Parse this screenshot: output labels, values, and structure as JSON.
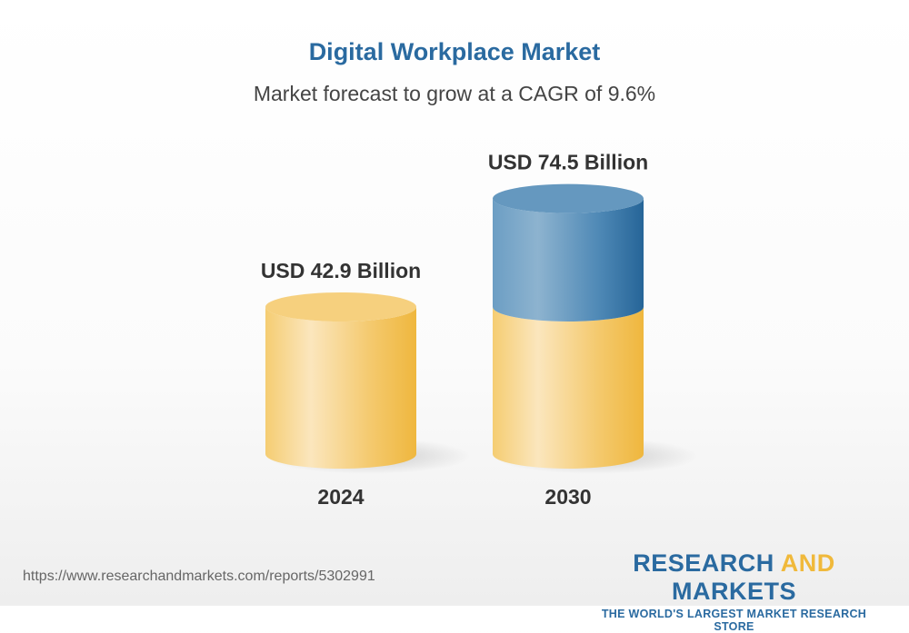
{
  "chart_data": {
    "type": "bar",
    "title": "Digital Workplace Market",
    "subtitle": "Market forecast to grow at a CAGR of 9.6%",
    "categories": [
      "2024",
      "2030"
    ],
    "values": [
      42.9,
      74.5
    ],
    "data_labels": [
      "USD 42.9 Billion",
      "USD 74.5 Billion"
    ],
    "style": "3d-cylinder",
    "colors": {
      "base": "#f2bc45",
      "growth": "#2a6aa0"
    }
  },
  "footer": {
    "url": "https://www.researchandmarkets.com/reports/5302991",
    "logo_part1": "RESEARCH ",
    "logo_part2": "AND",
    "logo_part3": " MARKETS",
    "tagline": "THE WORLD'S LARGEST MARKET RESEARCH STORE"
  }
}
